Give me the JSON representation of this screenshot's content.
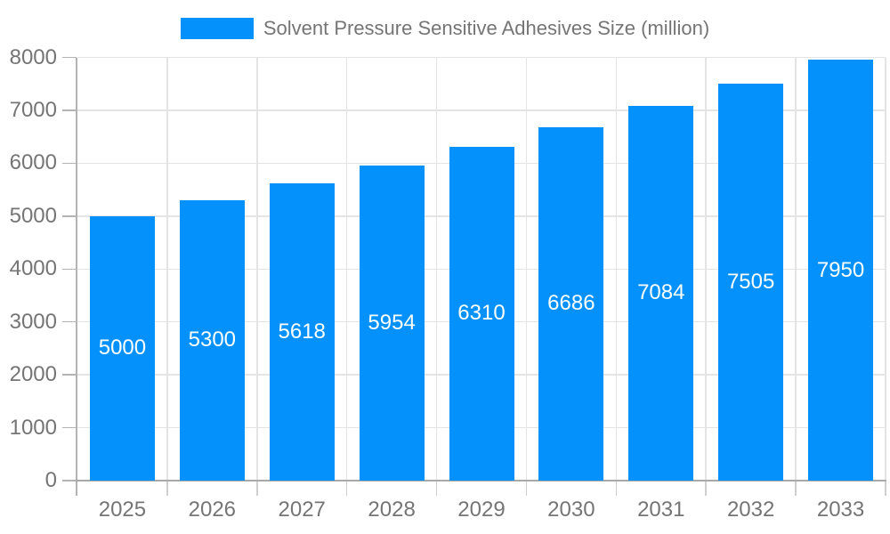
{
  "legend": {
    "label": "Solvent Pressure Sensitive Adhesives Size (million)"
  },
  "chart_data": {
    "type": "bar",
    "title": "Solvent Pressure Sensitive Adhesives Size (million)",
    "series_name": "Solvent Pressure Sensitive Adhesives Size (million)",
    "categories": [
      "2025",
      "2026",
      "2027",
      "2028",
      "2029",
      "2030",
      "2031",
      "2032",
      "2033"
    ],
    "values": [
      5000,
      5300,
      5618,
      5954,
      6310,
      6686,
      7084,
      7505,
      7950
    ],
    "xlabel": "",
    "ylabel": "",
    "ylim": [
      0,
      8000
    ],
    "yticks": [
      0,
      1000,
      2000,
      3000,
      4000,
      5000,
      6000,
      7000,
      8000
    ],
    "grid": true,
    "legend_position": "top",
    "value_labels": "inside-center",
    "colors": {
      "bar": "#0591fb",
      "value_label": "#ffffff",
      "tick_label": "#757575",
      "legend_text": "#757575",
      "grid": "#e4e4e4",
      "axis": "#b3b3b3",
      "bottom_axis": "#a9a9a9",
      "tick": "#cfcfcf",
      "background": "#ffffff"
    }
  }
}
